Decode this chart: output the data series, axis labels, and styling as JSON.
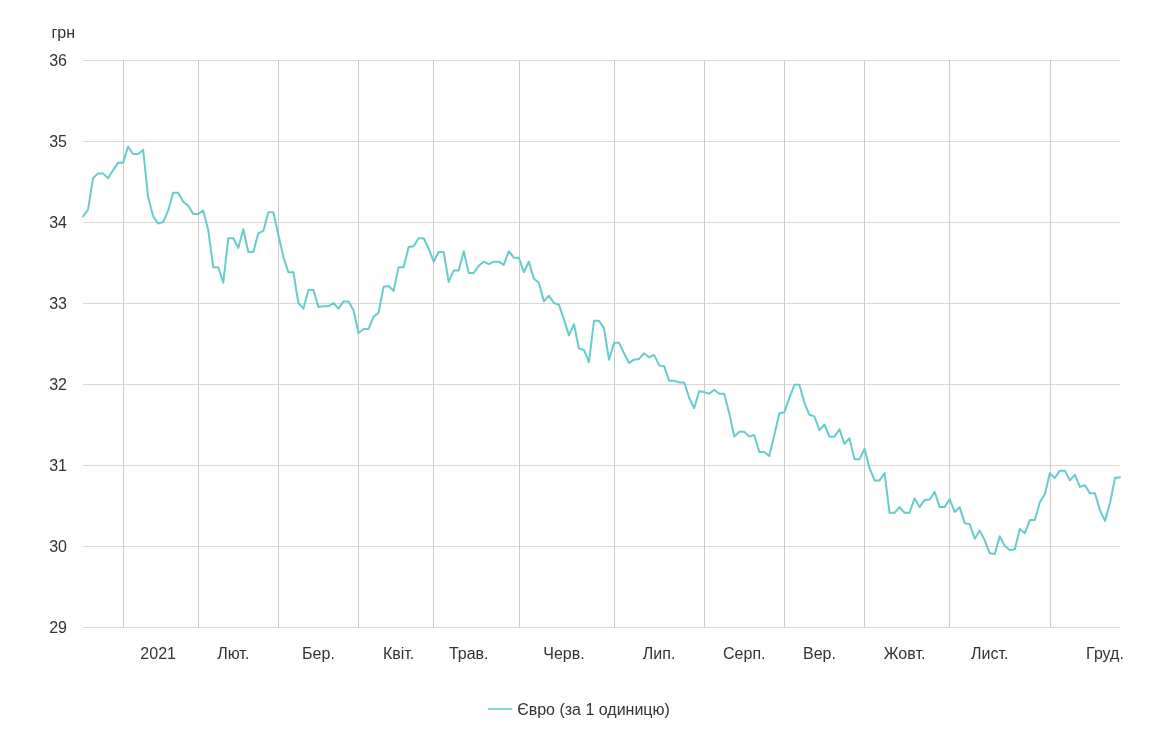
{
  "chart_data": {
    "type": "line",
    "ylabel": "грн",
    "grid": true,
    "legend": "bottom",
    "marker": "none",
    "line_style": "solid",
    "categories": [
      null,
      null,
      null,
      null,
      null,
      null,
      null,
      null,
      null,
      null,
      null,
      null,
      null,
      null,
      null,
      "2021",
      null,
      null,
      null,
      null,
      null,
      null,
      null,
      null,
      null,
      null,
      null,
      null,
      null,
      null,
      "Лют.",
      null,
      null,
      null,
      null,
      null,
      null,
      null,
      null,
      null,
      null,
      null,
      null,
      null,
      null,
      null,
      null,
      "Бер.",
      null,
      null,
      null,
      null,
      null,
      null,
      null,
      null,
      null,
      null,
      null,
      null,
      null,
      null,
      null,
      "Квіт.",
      null,
      null,
      null,
      null,
      null,
      null,
      null,
      null,
      null,
      null,
      null,
      null,
      null,
      "Трав.",
      null,
      null,
      null,
      null,
      null,
      null,
      null,
      null,
      null,
      null,
      null,
      null,
      null,
      null,
      null,
      null,
      null,
      null,
      "Черв.",
      null,
      null,
      null,
      null,
      null,
      null,
      null,
      null,
      null,
      null,
      null,
      null,
      null,
      null,
      null,
      null,
      null,
      null,
      "Лип.",
      null,
      null,
      null,
      null,
      null,
      null,
      null,
      null,
      null,
      null,
      null,
      null,
      null,
      null,
      null,
      null,
      "Серп.",
      null,
      null,
      null,
      null,
      null,
      null,
      null,
      null,
      null,
      null,
      null,
      null,
      null,
      null,
      "Вер.",
      null,
      null,
      null,
      null,
      null,
      null,
      null,
      null,
      null,
      null,
      null,
      null,
      null,
      null,
      null,
      null,
      "Жовт.",
      null,
      null,
      null,
      null,
      null,
      null,
      null,
      null,
      null,
      null,
      null,
      null,
      null,
      null,
      null,
      null,
      "Лист.",
      null,
      null,
      null,
      null,
      null,
      null,
      null,
      null,
      null,
      null,
      null,
      null,
      null,
      null,
      null,
      null,
      null,
      null,
      null,
      null,
      null,
      null,
      "Груд.",
      null,
      null,
      null
    ],
    "ylim": [
      29,
      36
    ],
    "yticks": [
      29,
      30,
      31,
      32,
      33,
      34,
      35,
      36
    ],
    "series": [
      {
        "name": "Євро (за 1 одиницю)",
        "color": "#66cccc",
        "values": [
          34.07,
          34.15,
          34.54,
          34.6,
          34.6,
          34.54,
          34.64,
          34.73,
          34.73,
          34.93,
          34.84,
          34.84,
          34.89,
          34.31,
          34.07,
          33.98,
          34.0,
          34.14,
          34.36,
          34.36,
          34.25,
          34.2,
          34.1,
          34.1,
          34.14,
          33.9,
          33.44,
          33.44,
          33.25,
          33.8,
          33.8,
          33.68,
          33.91,
          33.63,
          33.63,
          33.86,
          33.89,
          34.12,
          34.12,
          33.84,
          33.57,
          33.38,
          33.38,
          33.0,
          32.93,
          33.16,
          33.16,
          32.95,
          32.96,
          32.96,
          33.0,
          32.93,
          33.02,
          33.02,
          32.91,
          32.63,
          32.68,
          32.68,
          32.83,
          32.88,
          33.2,
          33.21,
          33.15,
          33.44,
          33.44,
          33.69,
          33.7,
          33.8,
          33.8,
          33.67,
          33.51,
          33.63,
          33.63,
          33.26,
          33.4,
          33.4,
          33.64,
          33.37,
          33.37,
          33.46,
          33.51,
          33.48,
          33.51,
          33.51,
          33.47,
          33.64,
          33.56,
          33.56,
          33.38,
          33.51,
          33.3,
          33.25,
          33.02,
          33.09,
          33.0,
          32.98,
          32.8,
          32.6,
          32.74,
          32.44,
          32.42,
          32.27,
          32.78,
          32.78,
          32.69,
          32.3,
          32.51,
          32.51,
          32.38,
          32.26,
          32.3,
          32.31,
          32.38,
          32.33,
          32.36,
          32.23,
          32.22,
          32.04,
          32.04,
          32.02,
          32.02,
          31.83,
          31.7,
          31.91,
          31.9,
          31.88,
          31.93,
          31.88,
          31.88,
          31.64,
          31.35,
          31.41,
          31.41,
          31.35,
          31.37,
          31.16,
          31.16,
          31.11,
          31.37,
          31.64,
          31.65,
          31.83,
          31.99,
          31.99,
          31.77,
          31.62,
          31.6,
          31.43,
          31.5,
          31.35,
          31.35,
          31.44,
          31.26,
          31.33,
          31.07,
          31.07,
          31.2,
          30.96,
          30.81,
          30.81,
          30.9,
          30.41,
          30.41,
          30.48,
          30.41,
          30.41,
          30.59,
          30.48,
          30.57,
          30.57,
          30.67,
          30.48,
          30.48,
          30.58,
          30.42,
          30.48,
          30.28,
          30.27,
          30.09,
          30.19,
          30.07,
          29.91,
          29.9,
          30.12,
          30.0,
          29.95,
          29.96,
          30.21,
          30.16,
          30.32,
          30.32,
          30.54,
          30.64,
          30.9,
          30.84,
          30.93,
          30.93,
          30.81,
          30.88,
          30.73,
          30.75,
          30.65,
          30.65,
          30.44,
          30.31,
          30.53,
          30.84,
          30.85
        ]
      }
    ]
  }
}
